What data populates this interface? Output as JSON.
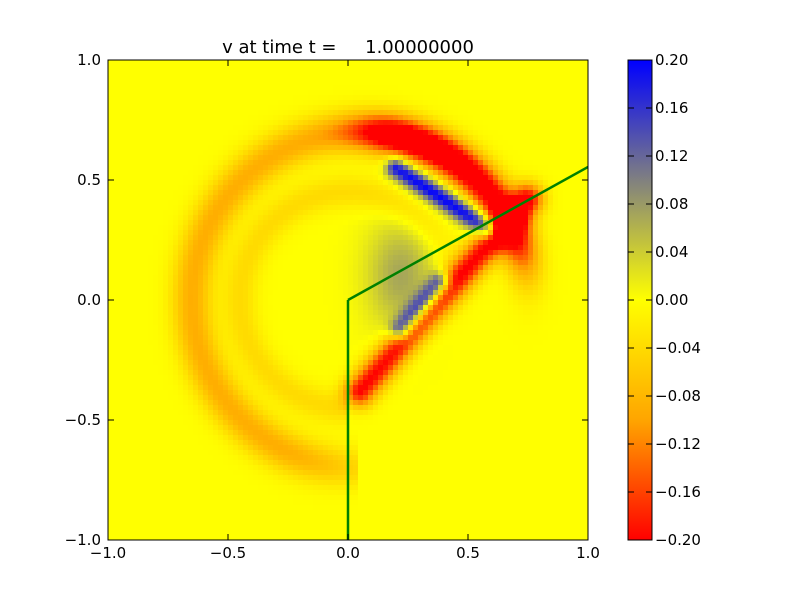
{
  "chart_data": {
    "type": "heatmap",
    "title": "v at time t =     1.00000000",
    "xlim": [
      -1.0,
      1.0
    ],
    "ylim": [
      -1.0,
      1.0
    ],
    "x_ticks": [
      -1.0,
      -0.5,
      0.0,
      0.5,
      1.0
    ],
    "x_tick_labels": [
      "−1.0",
      "−0.5",
      "0.0",
      "0.5",
      "1.0"
    ],
    "y_ticks": [
      -1.0,
      -0.5,
      0.0,
      0.5,
      1.0
    ],
    "y_tick_labels": [
      "−1.0",
      "−0.5",
      "0.0",
      "0.5",
      "1.0"
    ],
    "grid": false,
    "colorbar": {
      "vmin": -0.2,
      "vmax": 0.2,
      "ticks": [
        0.2,
        0.16,
        0.12,
        0.08,
        0.04,
        0.0,
        -0.04,
        -0.08,
        -0.12,
        -0.16,
        -0.2
      ],
      "tick_labels": [
        "0.20",
        "0.16",
        "0.12",
        "0.08",
        "0.04",
        "0.00",
        "−0.04",
        "−0.08",
        "−0.12",
        "−0.16",
        "−0.20"
      ],
      "colors": [
        "#ff0000",
        "#ffa500",
        "#ffff00",
        "#808080",
        "#0000ff"
      ]
    },
    "features": [
      {
        "name": "outer shock arc",
        "value": -0.2,
        "center": [
          0.05,
          0.0
        ],
        "radius": 0.7,
        "angle_range_deg": [
          25,
          75
        ]
      },
      {
        "name": "outer shock band (diffuse)",
        "value": -0.1,
        "center": [
          0.05,
          0.0
        ],
        "radius": 0.7,
        "angle_range_deg": [
          75,
          240
        ]
      },
      {
        "name": "inner wave ring",
        "value": -0.04,
        "center": [
          0.0,
          0.0
        ],
        "radius": 0.45,
        "angle_range_deg": [
          60,
          260
        ]
      },
      {
        "name": "reflected shock lobe",
        "value": -0.2,
        "from": [
          0.75,
          0.42
        ],
        "to": [
          0.05,
          -0.38
        ]
      },
      {
        "name": "positive band",
        "value": 0.2,
        "from": [
          0.2,
          0.55
        ],
        "to": [
          0.58,
          0.3
        ]
      },
      {
        "name": "positive lower streak",
        "value": 0.2,
        "from": [
          0.22,
          -0.12
        ],
        "to": [
          0.38,
          0.07
        ]
      }
    ],
    "lines": [
      {
        "color": "#008000",
        "x": [
          0.0,
          0.0
        ],
        "y": [
          -1.0,
          0.0
        ]
      },
      {
        "color": "#008000",
        "x": [
          0.0,
          1.0
        ],
        "y": [
          0.0,
          0.5543
        ]
      }
    ]
  }
}
